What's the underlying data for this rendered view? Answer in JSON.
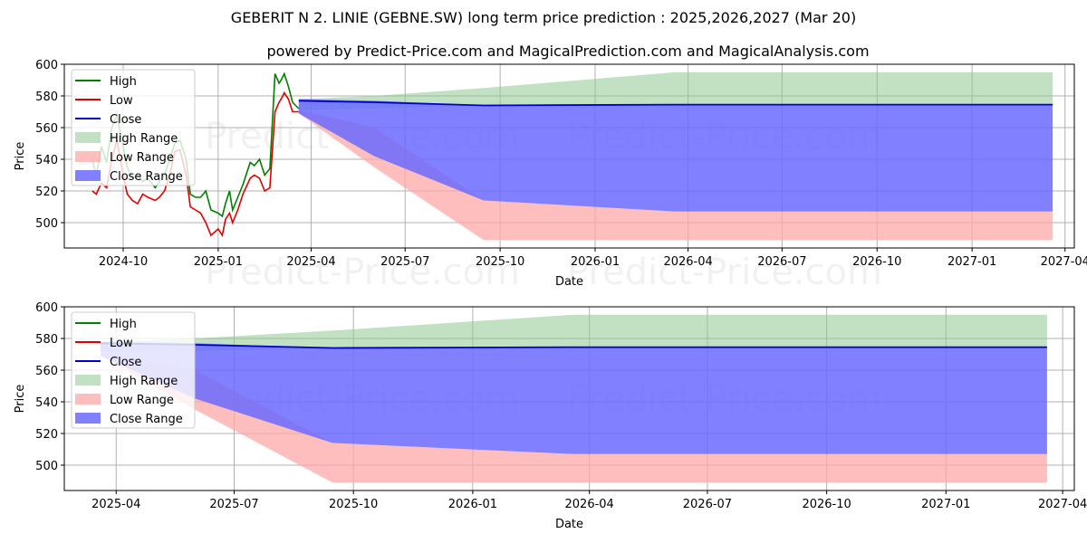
{
  "chart_data": {
    "type": "line",
    "title": "GEBERIT N 2. LINIE (GEBNE.SW) long term price prediction : 2025,2026,2027 (Mar 20)",
    "subtitle": "powered by Predict-Price.com and MagicalPrediction.com and MagicalAnalysis.com",
    "watermark": "Predict-Price.com",
    "colors": {
      "high": "#008000",
      "low": "#e00000",
      "close": "#0000cc",
      "high_range": "#8fc98f",
      "low_range": "#ffa8a8",
      "close_range": "#6b6bff"
    },
    "legend": [
      "High",
      "Low",
      "Close",
      "High Range",
      "Low Range",
      "Close Range"
    ],
    "history": {
      "x": [
        "2024-09-01",
        "2024-09-05",
        "2024-09-10",
        "2024-09-15",
        "2024-09-20",
        "2024-09-25",
        "2024-10-01",
        "2024-10-05",
        "2024-10-10",
        "2024-10-15",
        "2024-10-20",
        "2024-10-25",
        "2024-11-01",
        "2024-11-05",
        "2024-11-10",
        "2024-11-15",
        "2024-11-20",
        "2024-11-25",
        "2024-12-01",
        "2024-12-05",
        "2024-12-10",
        "2024-12-15",
        "2024-12-20",
        "2024-12-25",
        "2025-01-01",
        "2025-01-05",
        "2025-01-08",
        "2025-01-12",
        "2025-01-15",
        "2025-01-20",
        "2025-01-25",
        "2025-02-01",
        "2025-02-05",
        "2025-02-10",
        "2025-02-15",
        "2025-02-20",
        "2025-02-25",
        "2025-03-01",
        "2025-03-03",
        "2025-03-06",
        "2025-03-10",
        "2025-03-14",
        "2025-03-20"
      ],
      "high": [
        540,
        530,
        548,
        538,
        560,
        568,
        548,
        535,
        528,
        530,
        526,
        528,
        522,
        526,
        530,
        540,
        550,
        552,
        540,
        518,
        516,
        516,
        520,
        508,
        506,
        504,
        512,
        520,
        508,
        516,
        524,
        538,
        536,
        540,
        530,
        534,
        594,
        588,
        590,
        594,
        586,
        576,
        572
      ],
      "low": [
        520,
        518,
        525,
        522,
        540,
        552,
        530,
        518,
        514,
        512,
        518,
        516,
        514,
        516,
        520,
        530,
        545,
        546,
        530,
        510,
        508,
        506,
        500,
        492,
        496,
        492,
        502,
        506,
        500,
        508,
        518,
        528,
        530,
        528,
        520,
        522,
        570,
        576,
        578,
        582,
        578,
        570,
        570
      ],
      "close": [
        530,
        524,
        536,
        530,
        550,
        560,
        540,
        526,
        520,
        520,
        522,
        522,
        518,
        522,
        526,
        536,
        548,
        548,
        534,
        514,
        512,
        512,
        506,
        500,
        500,
        498,
        506,
        512,
        504,
        512,
        520,
        534,
        533,
        534,
        525,
        528,
        580,
        582,
        584,
        588,
        582,
        573,
        571
      ]
    },
    "forecast": {
      "x": [
        "2025-03-20",
        "2025-06-01",
        "2025-09-15",
        "2026-03-20",
        "2027-03-20"
      ],
      "high_range": {
        "upper": [
          578,
          580,
          585,
          595,
          595
        ],
        "lower": [
          571,
          572,
          574,
          574,
          574
        ]
      },
      "low_range": {
        "upper": [
          571,
          560,
          514,
          507,
          507
        ],
        "lower": [
          569,
          535,
          489,
          489,
          489
        ]
      },
      "close_range": {
        "upper": [
          578,
          577,
          574,
          574,
          574
        ],
        "lower": [
          569,
          542,
          514,
          507,
          507
        ]
      },
      "close": [
        577,
        576,
        574,
        574.5,
        574.5
      ]
    },
    "panels": [
      {
        "xlabel": "Date",
        "ylabel": "Price",
        "x_range": [
          "2024-08-05",
          "2027-04-10"
        ],
        "ylim": [
          484,
          600
        ],
        "yticks": [
          500,
          520,
          540,
          560,
          580,
          600
        ],
        "xticks": [
          "2024-10",
          "2025-01",
          "2025-04",
          "2025-07",
          "2025-10",
          "2026-01",
          "2026-04",
          "2026-07",
          "2026-10",
          "2027-01",
          "2027-04"
        ],
        "show_history": true,
        "legend_position": "top-left"
      },
      {
        "xlabel": "Date",
        "ylabel": "Price",
        "x_range": [
          "2025-02-20",
          "2027-04-10"
        ],
        "ylim": [
          484,
          600
        ],
        "yticks": [
          500,
          520,
          540,
          560,
          580,
          600
        ],
        "xticks": [
          "2025-04",
          "2025-07",
          "2025-10",
          "2026-01",
          "2026-04",
          "2026-07",
          "2026-10",
          "2027-01",
          "2027-04"
        ],
        "show_history": false,
        "legend_position": "top-left"
      }
    ]
  }
}
